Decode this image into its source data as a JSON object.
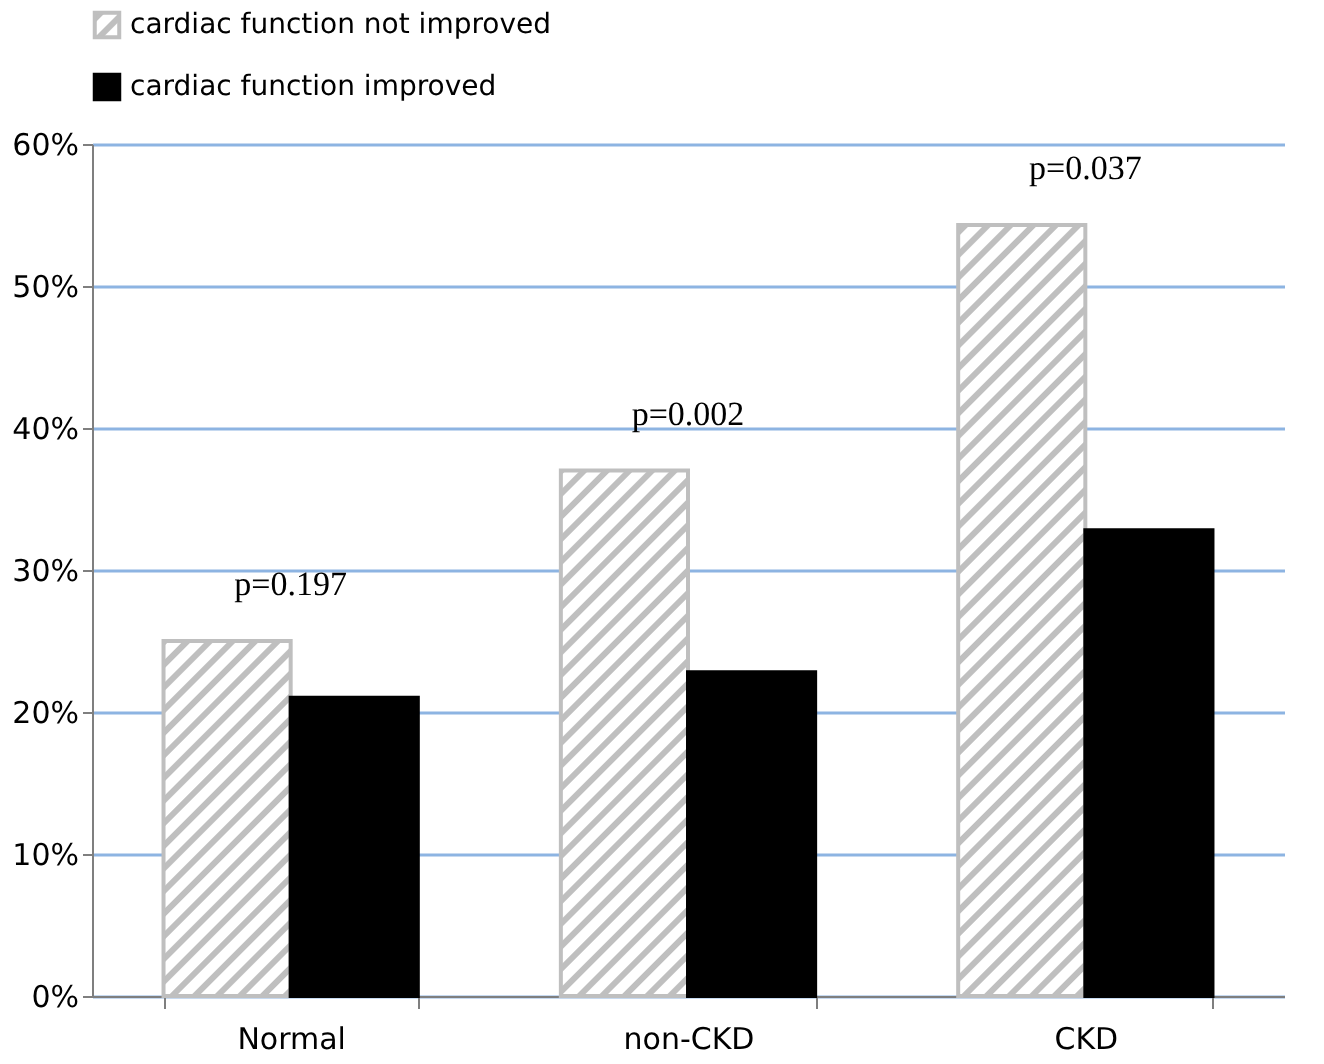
{
  "chart_data": {
    "type": "bar",
    "categories": [
      "Normal",
      "non-CKD",
      "CKD"
    ],
    "series": [
      {
        "name": "cardiac function not improved",
        "color": "#bfbfbf",
        "values": [
          25,
          37,
          54.3
        ]
      },
      {
        "name": "cardiac function improved",
        "color": "#000000",
        "values": [
          21,
          22.8,
          32.8
        ]
      }
    ],
    "ylim": [
      0,
      60
    ],
    "yticks": [
      {
        "value": 0,
        "label": "0%"
      },
      {
        "value": 10,
        "label": "10%"
      },
      {
        "value": 20,
        "label": "20%"
      },
      {
        "value": 30,
        "label": "30%"
      },
      {
        "value": 40,
        "label": "40%"
      },
      {
        "value": 50,
        "label": "50%"
      },
      {
        "value": 60,
        "label": "60%"
      }
    ],
    "annotations": [
      "p=0.197",
      "p=0.002",
      "p=0.037"
    ],
    "grid": "y",
    "legend": "top"
  }
}
